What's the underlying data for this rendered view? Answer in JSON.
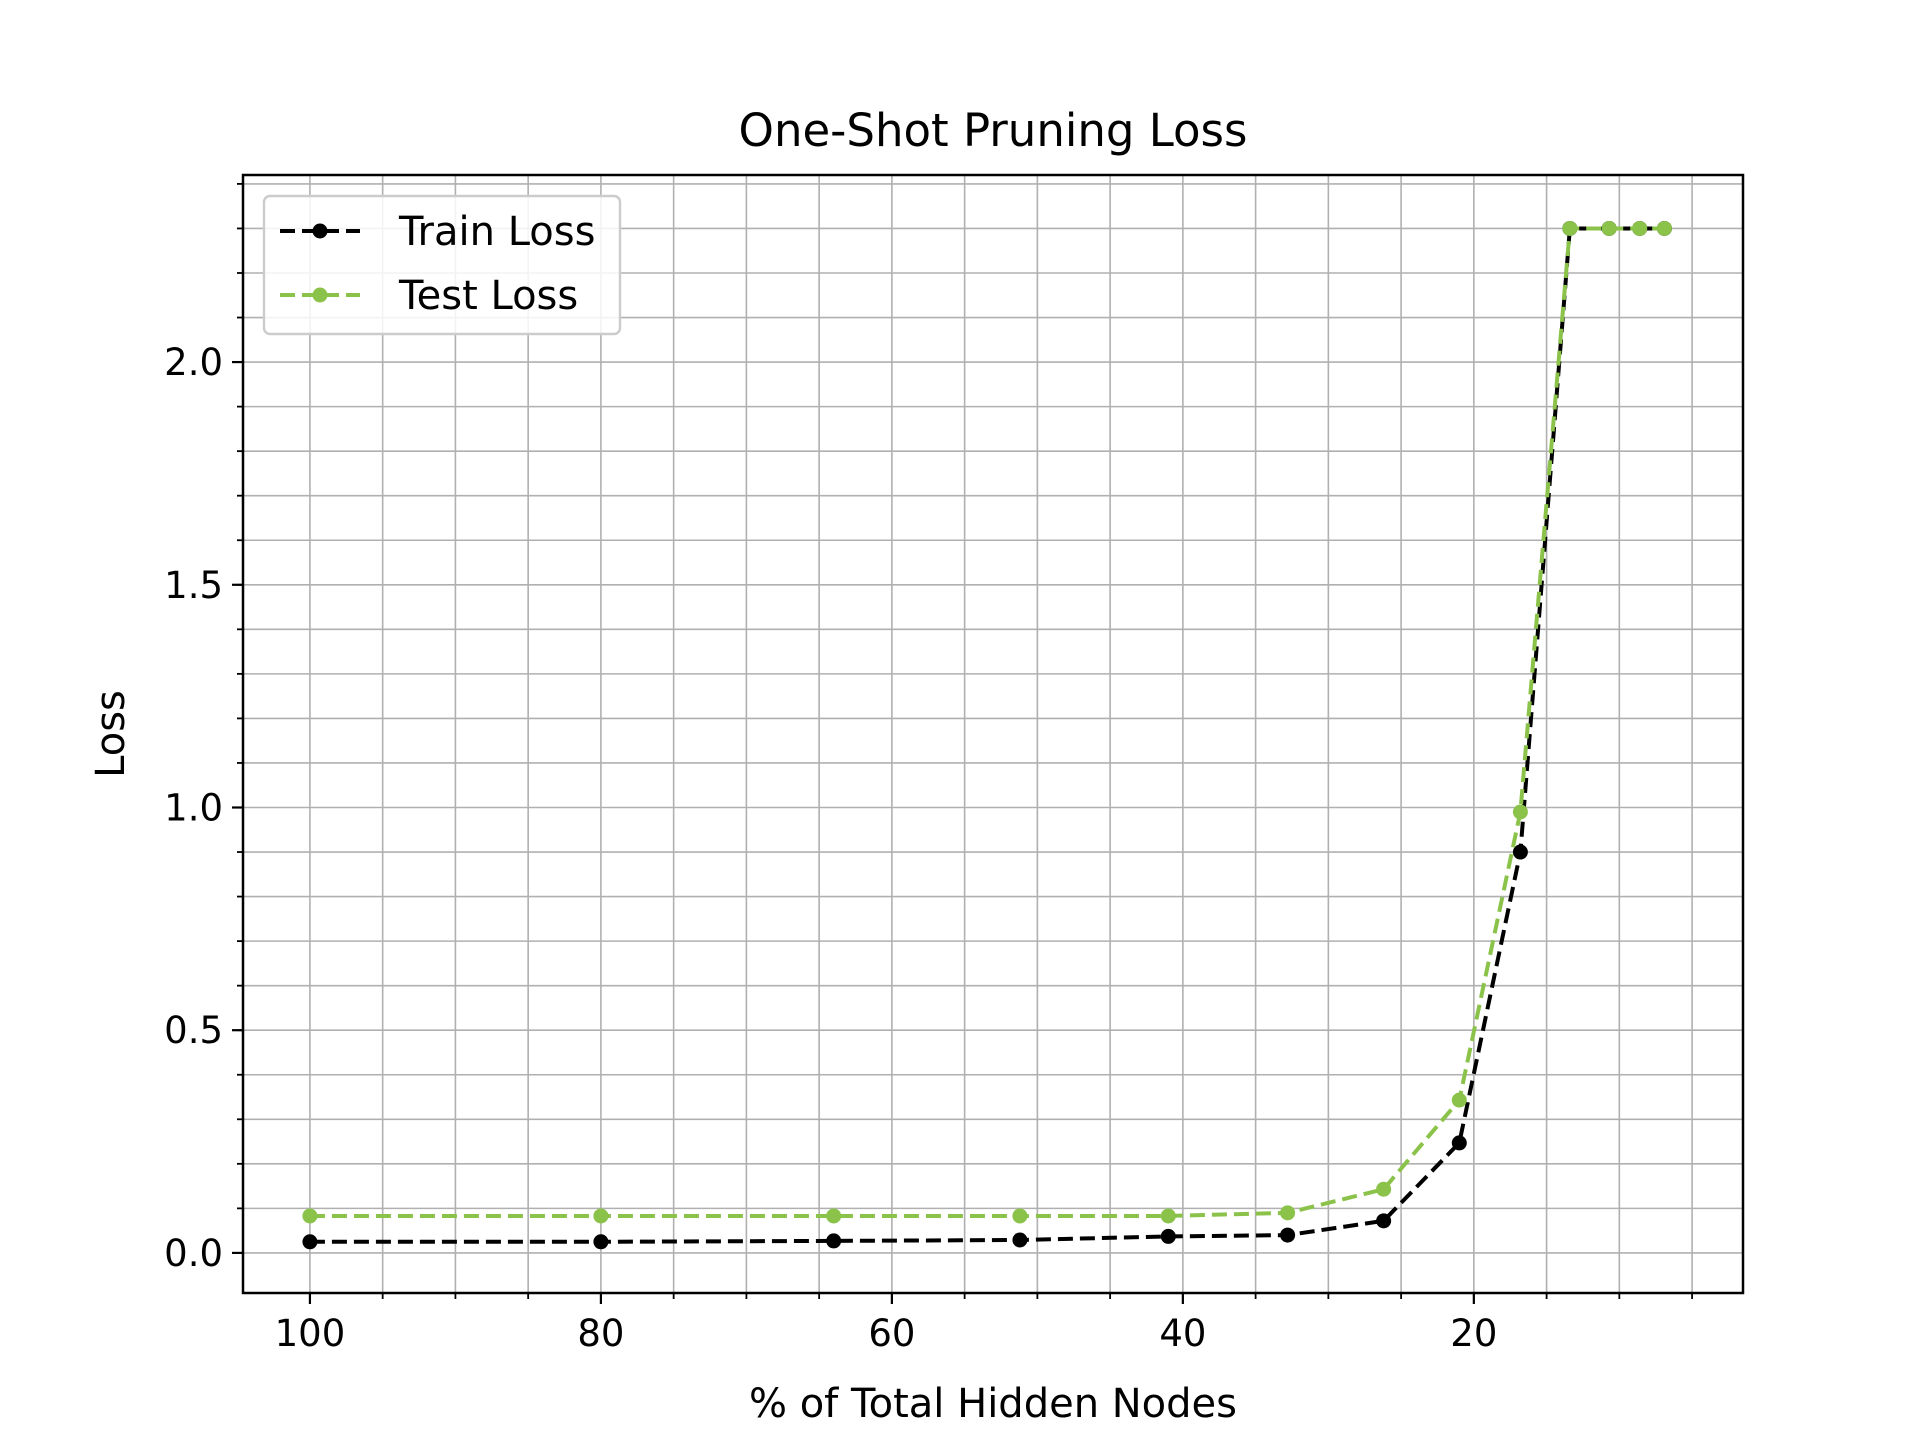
{
  "chart_data": {
    "type": "line",
    "title": "One-Shot Pruning Loss",
    "xlabel": "% of Total Hidden Nodes",
    "ylabel": "Loss",
    "x_axis_reversed": true,
    "xlim": [
      104.6,
      1.5
    ],
    "ylim": [
      -0.09,
      2.42
    ],
    "xticks": [
      100,
      80,
      60,
      40,
      20
    ],
    "yticks": [
      0.0,
      0.5,
      1.0,
      1.5,
      2.0
    ],
    "xtick_labels": [
      "100",
      "80",
      "60",
      "40",
      "20"
    ],
    "ytick_labels": [
      "0.0",
      "0.5",
      "1.0",
      "1.5",
      "2.0"
    ],
    "x_minor_step": 5,
    "y_minor_step": 0.1,
    "grid": "major and minor",
    "legend_position": "top-left",
    "x": [
      100,
      80,
      64,
      51.2,
      41,
      32.8,
      26.2,
      21,
      16.8,
      13.4,
      10.7,
      8.6,
      6.9
    ],
    "series": [
      {
        "name": "Train Loss",
        "color": "#000000",
        "style": "dashed",
        "marker": "circle",
        "values": [
          0.025,
          0.025,
          0.027,
          0.029,
          0.037,
          0.04,
          0.072,
          0.247,
          0.9,
          2.3,
          2.3,
          2.3,
          2.3
        ]
      },
      {
        "name": "Test Loss",
        "color": "#8bc34a",
        "style": "dashed",
        "marker": "circle",
        "values": [
          0.083,
          0.083,
          0.083,
          0.083,
          0.083,
          0.09,
          0.143,
          0.343,
          0.99,
          2.3,
          2.3,
          2.3,
          2.3
        ]
      }
    ]
  }
}
